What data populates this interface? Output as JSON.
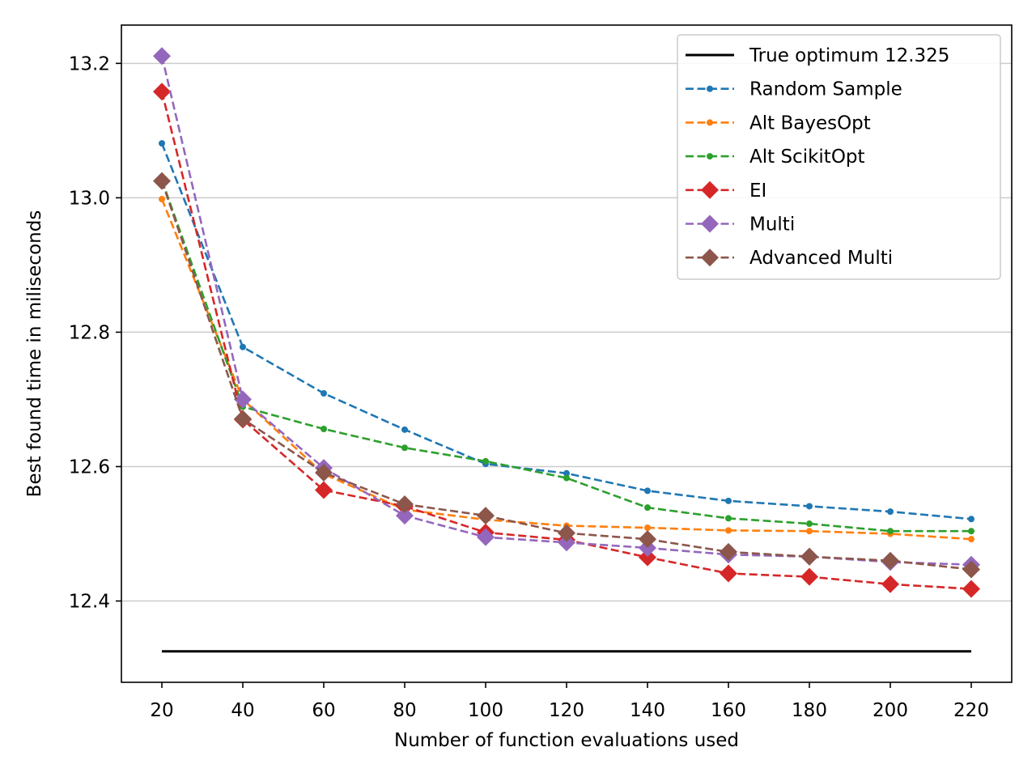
{
  "chart_data": {
    "type": "line",
    "title": "",
    "xlabel": "Number of function evaluations used",
    "ylabel": "Best found time in miliseconds",
    "xlim": [
      10,
      230
    ],
    "ylim": [
      12.279,
      13.257
    ],
    "xticks": [
      20,
      40,
      60,
      80,
      100,
      120,
      140,
      160,
      180,
      200,
      220
    ],
    "yticks": [
      12.4,
      12.6,
      12.8,
      13.0,
      13.2
    ],
    "ytick_labels": [
      "12.4",
      "12.6",
      "12.8",
      "13.0",
      "13.2"
    ],
    "grid": "horizontal",
    "legend_position": "top-right",
    "x": [
      20,
      40,
      60,
      80,
      100,
      120,
      140,
      160,
      180,
      200,
      220
    ],
    "series": [
      {
        "name": "True optimum 12.325",
        "color": "#000000",
        "style": "solid",
        "marker": "none",
        "values": [
          12.325,
          12.325,
          12.325,
          12.325,
          12.325,
          12.325,
          12.325,
          12.325,
          12.325,
          12.325,
          12.325
        ]
      },
      {
        "name": "Random Sample",
        "color": "#1f77b4",
        "style": "dashed",
        "marker": "point",
        "values": [
          13.081,
          12.778,
          12.709,
          12.655,
          12.604,
          12.59,
          12.564,
          12.549,
          12.541,
          12.533,
          12.522
        ]
      },
      {
        "name": "Alt BayesOpt",
        "color": "#ff7f0e",
        "style": "dashed",
        "marker": "point",
        "values": [
          12.998,
          12.7,
          12.589,
          12.536,
          12.521,
          12.512,
          12.509,
          12.505,
          12.504,
          12.5,
          12.492
        ]
      },
      {
        "name": "Alt ScikitOpt",
        "color": "#2ca02c",
        "style": "dashed",
        "marker": "point",
        "values": [
          13.026,
          12.689,
          12.656,
          12.628,
          12.608,
          12.583,
          12.539,
          12.523,
          12.515,
          12.504,
          12.504
        ]
      },
      {
        "name": "EI",
        "color": "#d62728",
        "style": "dashed",
        "marker": "diamond",
        "values": [
          13.158,
          12.67,
          12.565,
          12.541,
          12.502,
          12.491,
          12.465,
          12.441,
          12.436,
          12.425,
          12.418
        ]
      },
      {
        "name": "Multi",
        "color": "#9467bd",
        "style": "dashed",
        "marker": "diamond",
        "values": [
          13.211,
          12.7,
          12.598,
          12.527,
          12.495,
          12.487,
          12.479,
          12.469,
          12.466,
          12.458,
          12.454
        ]
      },
      {
        "name": "Advanced Multi",
        "color": "#8c564b",
        "style": "dashed",
        "marker": "diamond",
        "values": [
          13.025,
          12.671,
          12.591,
          12.544,
          12.527,
          12.501,
          12.492,
          12.473,
          12.466,
          12.46,
          12.447
        ]
      }
    ]
  }
}
